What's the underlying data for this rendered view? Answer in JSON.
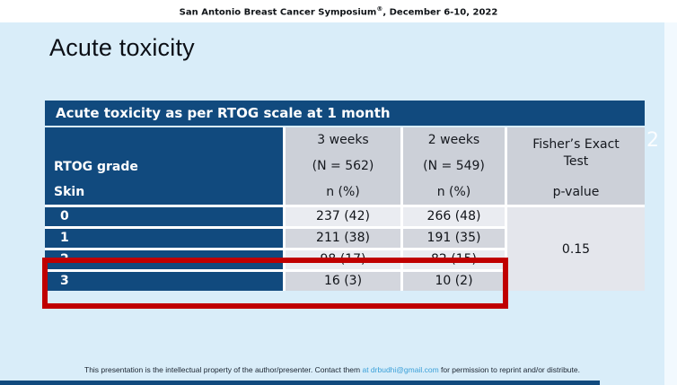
{
  "top_bar": {
    "text_pre": "San Antonio Breast Cancer Symposium",
    "registered": "®",
    "text_post": ", December 6-10, 2022"
  },
  "slide": {
    "title": "Acute toxicity",
    "page_number": "2"
  },
  "table": {
    "title": "Acute toxicity as per RTOG scale at 1 month",
    "row_header": {
      "line1": "RTOG grade",
      "line2": "Skin"
    },
    "columns": {
      "three_weeks": {
        "line1": "3 weeks",
        "line2": "(N = 562)",
        "line3": "n (%)"
      },
      "two_weeks": {
        "line1": "2 weeks",
        "line2": "(N = 549)",
        "line3": "n (%)"
      },
      "fisher": {
        "line1": "Fisher’s Exact",
        "line2": "Test",
        "line3": "p-value"
      }
    },
    "rows": [
      {
        "grade": "0",
        "three_weeks": "237 (42)",
        "two_weeks": "266 (48)"
      },
      {
        "grade": "1",
        "three_weeks": "211 (38)",
        "two_weeks": "191 (35)"
      },
      {
        "grade": "2",
        "three_weeks": "98 (17)",
        "two_weeks": "82 (15)"
      },
      {
        "grade": "3",
        "three_weeks": "16 (3)",
        "two_weeks": "10 (2)"
      }
    ],
    "p_value": "0.15"
  },
  "footer": {
    "text_pre": "This presentation is the intellectual property of the author/presenter. Contact them ",
    "link_text": "at  drbudhi@gmail.com",
    "text_post": " for permission to reprint and/or distribute."
  },
  "colors": {
    "navy": "#114a7e",
    "slide_background": "#d9edf9",
    "header_cell_gray": "#ccd0d8",
    "row_light": "#eaecf1",
    "row_dark": "#d3d6dd",
    "pvalue_cell": "#e4e6ec",
    "annotation_red": "#c00000",
    "link_blue": "#3aa0d9"
  }
}
